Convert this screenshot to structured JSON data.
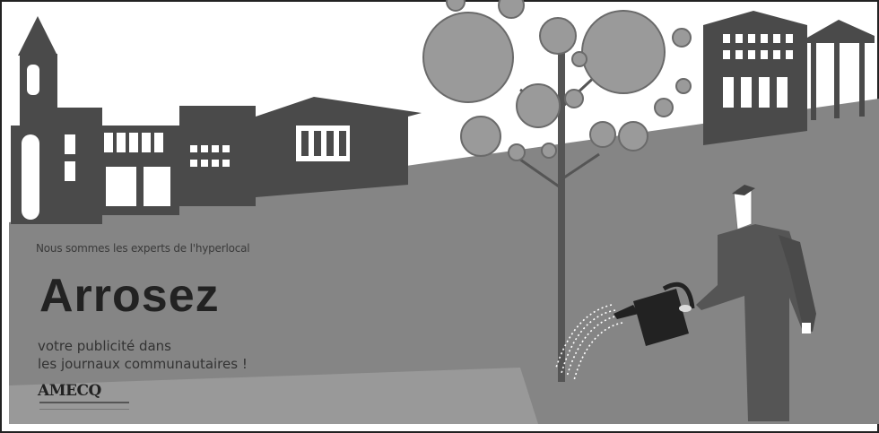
{
  "ad": {
    "tagline": "Nous sommes les experts de l'hyperlocal",
    "headline": "Arrosez",
    "body_line1": "votre publicité dans",
    "body_line2": "les journaux communautaires !",
    "logo_text": "AMECQ"
  },
  "colors": {
    "background": "#ffffff",
    "ground": "#858585",
    "buildings": "#4a4a4a",
    "person": "#555555",
    "can": "#222222",
    "border": "#222222"
  },
  "icons": [
    "church-icon",
    "tree-icon",
    "watering-can-icon",
    "person-icon"
  ]
}
